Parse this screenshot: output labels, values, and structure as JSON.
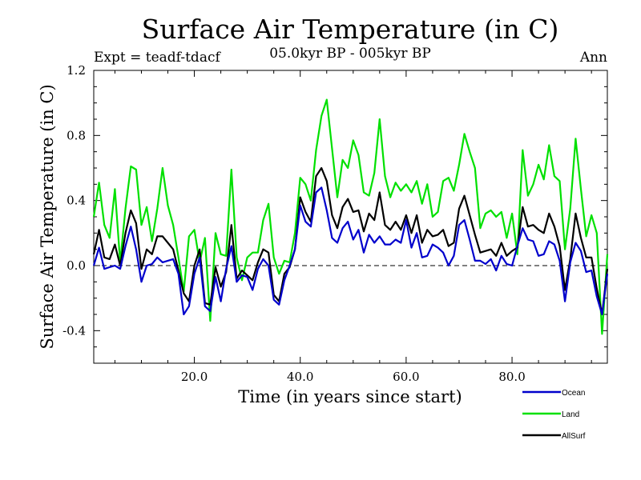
{
  "chart_data": {
    "type": "line",
    "title": "Surface Air Temperature (in C)",
    "subtitle": "05.0kyr BP - 005kyr BP",
    "experiment_label": "Expt = teadf-tdacf",
    "season_label": "Ann",
    "xlabel": "Time (in years since start)",
    "ylabel": "Surface Air Temperature (in C)",
    "xlim": [
      1,
      98
    ],
    "ylim": [
      -0.6,
      1.2
    ],
    "xticks": [
      20,
      40,
      60,
      80
    ],
    "xtick_labels": [
      "20.0",
      "40.0",
      "60.0",
      "80.0"
    ],
    "yticks": [
      -0.4,
      0.0,
      0.4,
      0.8,
      1.2
    ],
    "ytick_labels": [
      "-0.4",
      "0.0",
      "0.4",
      "0.8",
      "1.2"
    ],
    "reference_line": 0.0,
    "x_start": 1,
    "series": [
      {
        "name": "Ocean",
        "color": "#0000cc",
        "values": [
          0.0,
          0.11,
          -0.02,
          -0.01,
          0.0,
          -0.02,
          0.12,
          0.24,
          0.1,
          -0.1,
          0.0,
          0.01,
          0.05,
          0.02,
          0.03,
          0.04,
          -0.05,
          -0.3,
          -0.25,
          -0.05,
          0.05,
          -0.25,
          -0.28,
          -0.07,
          -0.22,
          -0.02,
          0.12,
          -0.1,
          -0.06,
          -0.07,
          -0.15,
          -0.02,
          0.04,
          0.0,
          -0.21,
          -0.24,
          -0.09,
          0.0,
          0.1,
          0.37,
          0.27,
          0.24,
          0.45,
          0.48,
          0.34,
          0.17,
          0.14,
          0.23,
          0.27,
          0.16,
          0.22,
          0.08,
          0.19,
          0.14,
          0.18,
          0.13,
          0.13,
          0.16,
          0.14,
          0.28,
          0.11,
          0.2,
          0.05,
          0.06,
          0.13,
          0.11,
          0.08,
          0.0,
          0.06,
          0.25,
          0.28,
          0.16,
          0.03,
          0.03,
          0.01,
          0.04,
          -0.03,
          0.06,
          0.01,
          0.0,
          0.12,
          0.23,
          0.16,
          0.15,
          0.06,
          0.07,
          0.15,
          0.13,
          0.03,
          -0.22,
          0.02,
          0.14,
          0.09,
          -0.04,
          -0.03,
          -0.19,
          -0.3,
          -0.05
        ]
      },
      {
        "name": "Land",
        "color": "#00e000",
        "values": [
          0.3,
          0.51,
          0.25,
          0.17,
          0.47,
          0.02,
          0.35,
          0.61,
          0.59,
          0.25,
          0.36,
          0.15,
          0.35,
          0.6,
          0.37,
          0.25,
          0.05,
          -0.16,
          0.18,
          0.22,
          0.02,
          0.17,
          -0.34,
          0.2,
          0.07,
          0.06,
          0.59,
          0.05,
          -0.09,
          0.05,
          0.08,
          0.08,
          0.28,
          0.38,
          0.05,
          -0.05,
          0.03,
          0.02,
          0.2,
          0.54,
          0.5,
          0.4,
          0.71,
          0.92,
          1.02,
          0.72,
          0.42,
          0.65,
          0.6,
          0.77,
          0.68,
          0.45,
          0.43,
          0.57,
          0.9,
          0.55,
          0.42,
          0.51,
          0.46,
          0.5,
          0.45,
          0.52,
          0.38,
          0.5,
          0.3,
          0.33,
          0.52,
          0.54,
          0.46,
          0.62,
          0.81,
          0.7,
          0.6,
          0.23,
          0.32,
          0.34,
          0.3,
          0.33,
          0.17,
          0.32,
          0.07,
          0.71,
          0.43,
          0.5,
          0.62,
          0.53,
          0.74,
          0.55,
          0.52,
          0.1,
          0.35,
          0.78,
          0.47,
          0.18,
          0.31,
          0.2,
          -0.42,
          0.07
        ]
      },
      {
        "name": "AllSurf",
        "color": "#000000",
        "values": [
          0.07,
          0.22,
          0.05,
          0.04,
          0.13,
          0.0,
          0.2,
          0.34,
          0.26,
          -0.02,
          0.1,
          0.07,
          0.18,
          0.18,
          0.14,
          0.1,
          -0.03,
          -0.17,
          -0.22,
          0.0,
          0.1,
          -0.23,
          -0.24,
          -0.01,
          -0.13,
          -0.04,
          0.25,
          -0.08,
          -0.03,
          -0.06,
          -0.09,
          0.02,
          0.1,
          0.08,
          -0.18,
          -0.22,
          -0.05,
          -0.01,
          0.1,
          0.42,
          0.33,
          0.27,
          0.55,
          0.6,
          0.52,
          0.31,
          0.23,
          0.36,
          0.41,
          0.33,
          0.34,
          0.21,
          0.32,
          0.28,
          0.45,
          0.25,
          0.22,
          0.27,
          0.22,
          0.31,
          0.2,
          0.31,
          0.14,
          0.22,
          0.18,
          0.19,
          0.22,
          0.12,
          0.14,
          0.35,
          0.43,
          0.31,
          0.19,
          0.08,
          0.09,
          0.1,
          0.06,
          0.14,
          0.06,
          0.09,
          0.11,
          0.36,
          0.24,
          0.25,
          0.22,
          0.2,
          0.32,
          0.24,
          0.12,
          -0.15,
          0.04,
          0.32,
          0.17,
          0.05,
          0.05,
          -0.14,
          -0.3,
          -0.02
        ]
      }
    ]
  }
}
